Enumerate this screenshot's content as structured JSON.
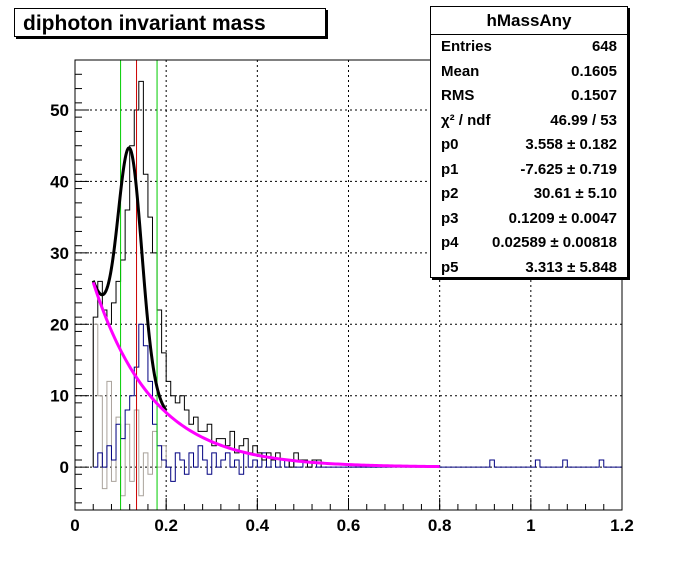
{
  "title": "diphoton invariant mass",
  "stats": {
    "name": "hMassAny",
    "rows": [
      {
        "label": "Entries",
        "value": "648"
      },
      {
        "label": "Mean",
        "value": "0.1605"
      },
      {
        "label": "RMS",
        "value": "0.1507"
      },
      {
        "label": "χ² / ndf",
        "value": "46.99 / 53"
      },
      {
        "label": "p0",
        "value": "3.558 ± 0.182"
      },
      {
        "label": "p1",
        "value": "-7.625 ± 0.719"
      },
      {
        "label": "p2",
        "value": "30.61 ± 5.10"
      },
      {
        "label": "p3",
        "value": "0.1209 ± 0.0047"
      },
      {
        "label": "p4",
        "value": "0.02589 ± 0.00818"
      },
      {
        "label": "p5",
        "value": "3.313 ± 5.848"
      }
    ]
  },
  "chart_data": {
    "type": "histogram",
    "title": "diphoton invariant mass",
    "xlabel": "",
    "ylabel": "",
    "xlim": [
      0,
      1.2
    ],
    "ylim": [
      -6,
      57
    ],
    "x_ticks": [
      0,
      0.2,
      0.4,
      0.6,
      0.8,
      1,
      1.2
    ],
    "x_tick_labels": [
      "0",
      "0.2",
      "0.4",
      "0.6",
      "0.8",
      "1",
      "1.2"
    ],
    "y_ticks": [
      0,
      10,
      20,
      30,
      40,
      50
    ],
    "y_tick_labels": [
      "0",
      "10",
      "20",
      "30",
      "40",
      "50"
    ],
    "grid": true,
    "bin_width": 0.01,
    "series": [
      {
        "color": "#000000",
        "x_start": 0.04,
        "values": [
          21,
          26,
          22,
          20,
          23,
          26,
          29,
          36,
          45,
          50,
          54,
          41,
          35,
          30,
          22,
          16,
          12,
          10,
          9,
          10,
          8,
          6,
          7,
          5,
          5,
          6,
          3,
          4,
          4,
          3,
          5,
          2,
          3,
          4,
          2,
          3,
          2,
          1,
          2,
          1,
          2,
          1,
          1,
          0,
          2,
          1,
          1,
          0,
          1,
          1
        ]
      },
      {
        "color": "#000080",
        "x_start": 0.04,
        "values": [
          0,
          2,
          0,
          3,
          1,
          6,
          4,
          8,
          10,
          14,
          20,
          17,
          12,
          6,
          3,
          1,
          0,
          -2,
          2,
          1,
          -1,
          2,
          0,
          3,
          1,
          -1,
          2,
          0,
          1,
          2,
          0,
          1,
          -1,
          2,
          0,
          1,
          0,
          2,
          0,
          1,
          0,
          1,
          0,
          1,
          0,
          0,
          1,
          0,
          1,
          0,
          0,
          0,
          0,
          0,
          0,
          0,
          0,
          0,
          0,
          0,
          0,
          0,
          0,
          0,
          0,
          0,
          0,
          0,
          0,
          0,
          0,
          0,
          0,
          0,
          0,
          0,
          0,
          0,
          0,
          0,
          0,
          0,
          0,
          0,
          0,
          0,
          0,
          1,
          0,
          0,
          0,
          0,
          0,
          0,
          0,
          0,
          0,
          1,
          0,
          0,
          0,
          0,
          0,
          1,
          0,
          0,
          0,
          0,
          0,
          0,
          0,
          1,
          0,
          0
        ]
      },
      {
        "color": "#a9a29b",
        "x_start": 0.04,
        "values": [
          20,
          10,
          -3,
          12,
          -2,
          7,
          -4,
          6,
          -2,
          8,
          -4,
          2,
          -1,
          5,
          0,
          3,
          0
        ]
      }
    ],
    "fit_curves": [
      {
        "name": "total-fit",
        "color": "#000000",
        "p": [
          3.558,
          -7.625,
          30.61,
          0.1209,
          0.02589
        ],
        "xrange": [
          0.04,
          0.2
        ]
      },
      {
        "name": "background-fit",
        "color": "#ff00ff",
        "p": [
          3.558,
          -7.625
        ],
        "xrange": [
          0.04,
          0.8
        ]
      }
    ],
    "vertical_markers": [
      {
        "x": 0.1,
        "color": "#00cc00"
      },
      {
        "x": 0.135,
        "color": "#cc0000"
      },
      {
        "x": 0.18,
        "color": "#00cc00"
      }
    ]
  }
}
